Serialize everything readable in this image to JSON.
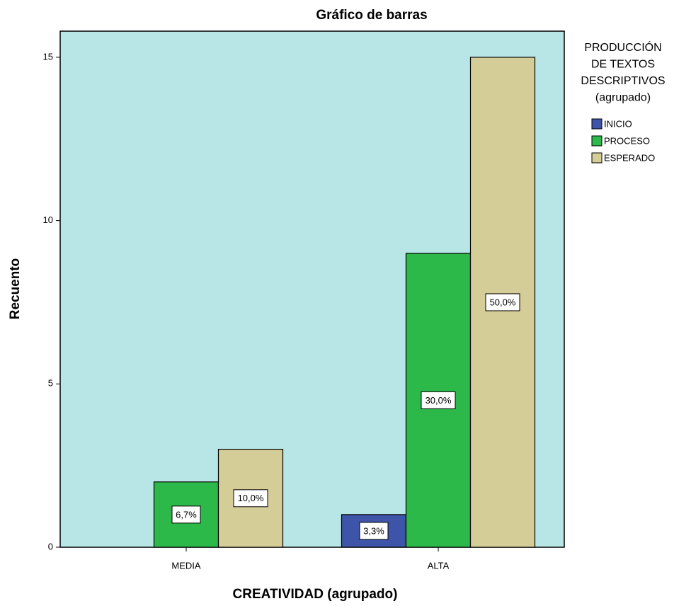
{
  "chart_data": {
    "type": "bar",
    "title": "Gráfico de barras",
    "x_label": "CREATIVIDAD (agrupado)",
    "y_label": "Recuento",
    "legend_title": [
      "PRODUCCIÓN",
      "DE TEXTOS",
      "DESCRIPTIVOS",
      "(agrupado)"
    ],
    "categories": [
      "MEDIA",
      "ALTA"
    ],
    "series": [
      {
        "name": "INICIO",
        "color": "#3e54a8",
        "values": [
          0,
          1
        ],
        "data_labels": [
          null,
          "3,3%"
        ]
      },
      {
        "name": "PROCESO",
        "color": "#2db84a",
        "values": [
          2,
          9
        ],
        "data_labels": [
          "6,7%",
          "30,0%"
        ]
      },
      {
        "name": "ESPERADO",
        "color": "#d4cd97",
        "values": [
          3,
          15
        ],
        "data_labels": [
          "10,0%",
          "50,0%"
        ]
      }
    ],
    "ylim": [
      0,
      15.8
    ],
    "yticks": [
      0,
      5,
      10,
      15
    ],
    "plot_background": "#b8e6e6"
  }
}
